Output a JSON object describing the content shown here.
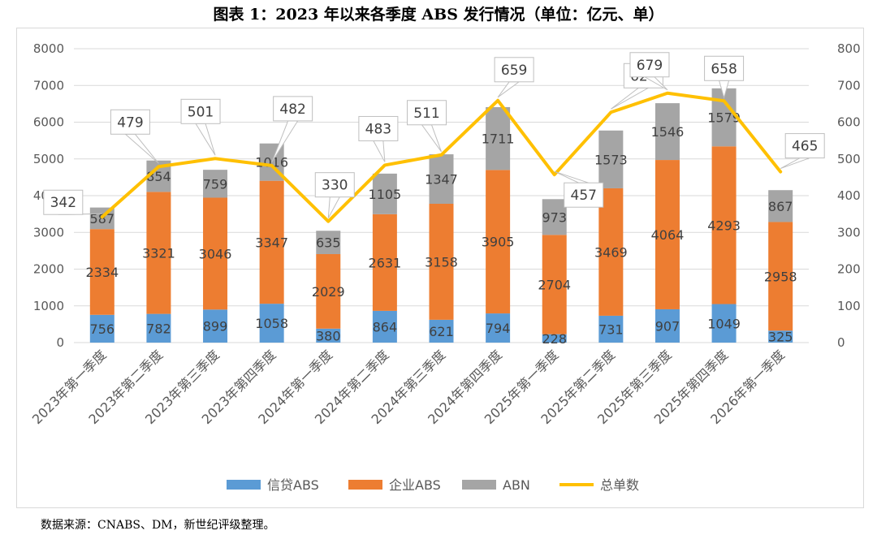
{
  "title": "图表 1：2023 年以来各季度 ABS 发行情况（单位：亿元、单）",
  "source": "数据来源：CNABS、DM，新世纪评级整理。",
  "chart_data": {
    "type": "bar",
    "stacked": true,
    "categories": [
      "2023年第一季度",
      "2023年第二季度",
      "2023年第三季度",
      "2023年第四季度",
      "2024年第一季度",
      "2024年第二季度",
      "2024年第三季度",
      "2024年第四季度",
      "2025年第一季度",
      "2025年第二季度",
      "2025年第三季度",
      "2025年第四季度",
      "2026年第一季度"
    ],
    "series": [
      {
        "name": "信贷ABS",
        "type": "bar",
        "axis": "left",
        "color": "#5b9bd5",
        "values": [
          756,
          782,
          899,
          1058,
          380,
          864,
          621,
          794,
          228,
          731,
          907,
          1049,
          325
        ]
      },
      {
        "name": "企业ABS",
        "type": "bar",
        "axis": "left",
        "color": "#ed7d31",
        "values": [
          2334,
          3321,
          3046,
          3347,
          2029,
          2631,
          3158,
          3905,
          2704,
          3469,
          4064,
          4293,
          2958
        ]
      },
      {
        "name": "ABN",
        "type": "bar",
        "axis": "left",
        "color": "#a5a5a5",
        "values": [
          587,
          854,
          759,
          1016,
          635,
          1105,
          1347,
          1711,
          973,
          1573,
          1546,
          1579,
          867
        ]
      },
      {
        "name": "总单数",
        "type": "line",
        "axis": "right",
        "color": "#ffc000",
        "values": [
          342,
          479,
          501,
          482,
          330,
          483,
          511,
          659,
          457,
          627,
          679,
          658,
          465
        ]
      }
    ],
    "y_left": {
      "min": 0,
      "max": 8000,
      "ticks": [
        "0",
        "1000",
        "2000",
        "3000",
        "4000",
        "5000",
        "6000",
        "7000",
        "8000"
      ]
    },
    "y_right": {
      "min": 0,
      "max": 800,
      "ticks": [
        "0",
        "100",
        "200",
        "300",
        "400",
        "500",
        "600",
        "700",
        "800"
      ]
    },
    "grid": true,
    "legend_position": "bottom"
  }
}
